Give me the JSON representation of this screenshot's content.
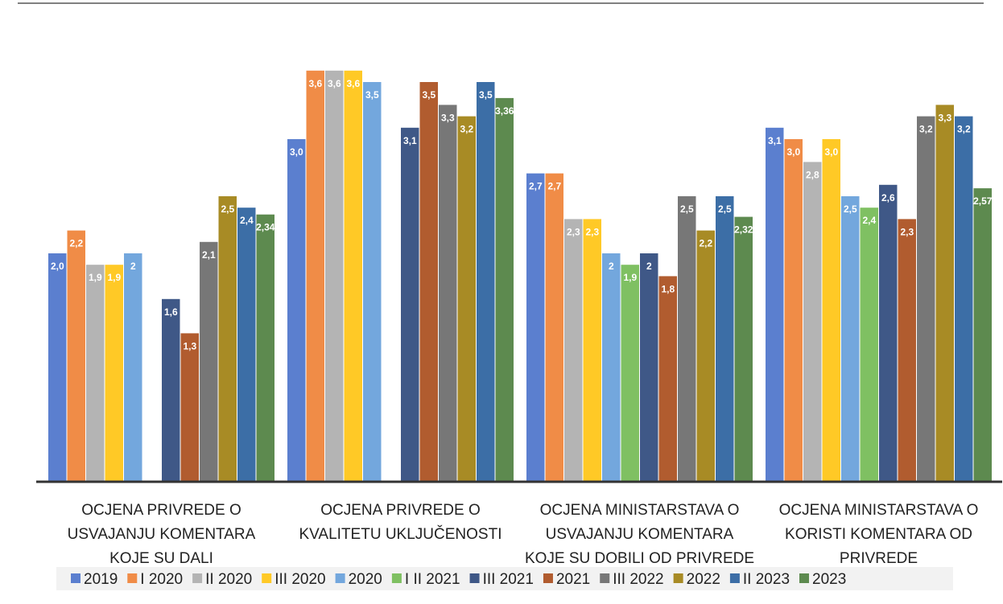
{
  "chart_data": {
    "type": "bar",
    "title": "",
    "xlabel": "",
    "ylabel": "",
    "ylim": [
      0,
      3.9
    ],
    "grid": false,
    "legend_position": "bottom",
    "categories": [
      [
        "OCJENA PRIVREDE O",
        "USVAJANJU KOMENTARA",
        "KOJE SU DALI"
      ],
      [
        "OCJENA PRIVREDE O",
        "KVALITETU UKLJUČENOSTI"
      ],
      [
        "OCJENA MINISTARSTAVA O",
        "USVAJANJU KOMENTARA",
        "KOJE SU DOBILI OD PRIVREDE"
      ],
      [
        "OCJENA MINISTARSTAVA O",
        "KORISTI KOMENTARA OD",
        "PRIVREDE"
      ]
    ],
    "series": [
      {
        "name": "2019",
        "color": "#5b7fcf",
        "values": [
          2.0,
          3.0,
          2.7,
          3.1
        ],
        "labels": [
          "2,0",
          "3,0",
          "2,7",
          "3,1"
        ]
      },
      {
        "name": "I 2020",
        "color": "#f08c47",
        "values": [
          2.2,
          3.6,
          2.7,
          3.0
        ],
        "labels": [
          "2,2",
          "3,6",
          "2,7",
          "3,0"
        ]
      },
      {
        "name": "II 2020",
        "color": "#b4b4b4",
        "values": [
          1.9,
          3.6,
          2.3,
          2.8
        ],
        "labels": [
          "1,9",
          "3,6",
          "2,3",
          "2,8"
        ]
      },
      {
        "name": "III 2020",
        "color": "#ffc926",
        "values": [
          1.9,
          3.6,
          2.3,
          3.0
        ],
        "labels": [
          "1,9",
          "3,6",
          "2,3",
          "3,0"
        ]
      },
      {
        "name": "2020",
        "color": "#73a7dd",
        "values": [
          2.0,
          3.5,
          2.0,
          2.5
        ],
        "labels": [
          "2",
          "3,5",
          "2",
          "2,5"
        ]
      },
      {
        "name": "I II 2021",
        "color": "#7fc062",
        "values": [
          null,
          null,
          1.9,
          2.4
        ],
        "labels": [
          "",
          "",
          "1,9",
          "2,4"
        ]
      },
      {
        "name": "III 2021",
        "color": "#3f5887",
        "values": [
          1.6,
          3.1,
          2.0,
          2.6
        ],
        "labels": [
          "1,6",
          "3,1",
          "2",
          "2,6"
        ]
      },
      {
        "name": "2021",
        "color": "#b15c2f",
        "values": [
          1.3,
          3.5,
          1.8,
          2.3
        ],
        "labels": [
          "1,3",
          "3,5",
          "1,8",
          "2,3"
        ]
      },
      {
        "name": "III 2022",
        "color": "#777777",
        "values": [
          2.1,
          3.3,
          2.5,
          3.2
        ],
        "labels": [
          "2,1",
          "3,3",
          "2,5",
          "3,2"
        ]
      },
      {
        "name": "2022",
        "color": "#a88b25",
        "values": [
          2.5,
          3.2,
          2.2,
          3.3
        ],
        "labels": [
          "2,5",
          "3,2",
          "2,2",
          "3,3"
        ]
      },
      {
        "name": "II 2023",
        "color": "#3c6ea6",
        "values": [
          2.4,
          3.5,
          2.5,
          3.2
        ],
        "labels": [
          "2,4",
          "3,5",
          "2,5",
          "3,2"
        ]
      },
      {
        "name": "2023",
        "color": "#5d8a4f",
        "values": [
          2.34,
          3.36,
          2.32,
          2.57
        ],
        "labels": [
          "2,34",
          "3,36",
          "2,32",
          "2,57"
        ]
      }
    ]
  }
}
